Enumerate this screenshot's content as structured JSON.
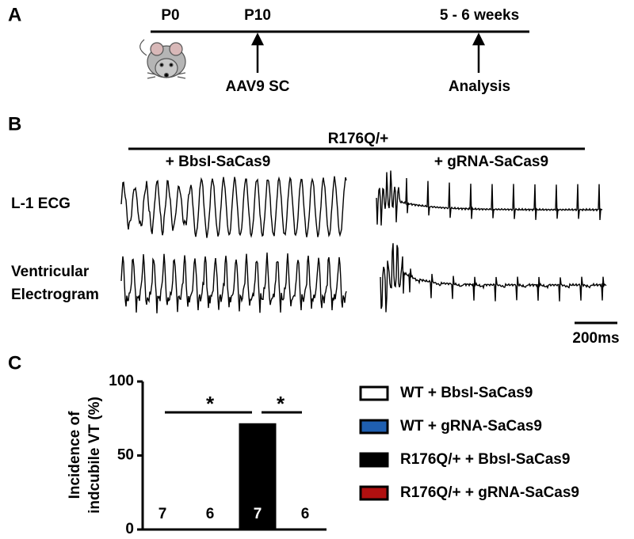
{
  "panel_a": {
    "label": "A",
    "timepoints": [
      "P0",
      "P10",
      "5 - 6 weeks"
    ],
    "events": [
      "AAV9 SC",
      "Analysis"
    ]
  },
  "panel_b": {
    "label": "B",
    "genotype": "R176Q/+",
    "conditions": [
      "+ BbsI-SaCas9",
      "+ gRNA-SaCas9"
    ],
    "ecg_label": "L-1 ECG",
    "egm_label": [
      "Ventricular",
      "Electrogram"
    ],
    "scale_bar": "200ms"
  },
  "panel_c": {
    "label": "C"
  },
  "chart_data": {
    "type": "bar",
    "y_label": [
      "Incidence of",
      "indcubile VT (%)"
    ],
    "categories": [
      "WT + BbsI-SaCas9",
      "WT + gRNA-SaCas9",
      "R176Q/+ + BbsI-SaCas9",
      "R176Q/+ + gRNA-SaCas9"
    ],
    "values": [
      0,
      0,
      71,
      0
    ],
    "colors": [
      "#ffffff",
      "#1f5fb0",
      "#000000",
      "#b01010"
    ],
    "n": [
      7,
      6,
      7,
      6
    ],
    "significance_marks": [
      "*",
      "*"
    ],
    "ylim": [
      0,
      100
    ],
    "yticks": [
      0,
      50,
      100
    ]
  }
}
